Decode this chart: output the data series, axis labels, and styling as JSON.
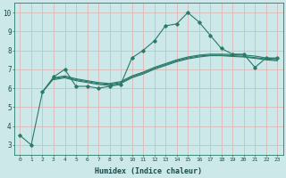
{
  "bg_color": "#cce8e8",
  "grid_color": "#ddb8b8",
  "line_color": "#2a7a6a",
  "xlabel": "Humidex (Indice chaleur)",
  "xlim": [
    -0.5,
    23.5
  ],
  "ylim": [
    2.5,
    10.5
  ],
  "yticks": [
    3,
    4,
    5,
    6,
    7,
    8,
    9,
    10
  ],
  "xticks": [
    0,
    1,
    2,
    3,
    4,
    5,
    6,
    7,
    8,
    9,
    10,
    11,
    12,
    13,
    14,
    15,
    16,
    17,
    18,
    19,
    20,
    21,
    22,
    23
  ],
  "main_x": [
    0,
    1,
    2,
    3,
    4,
    5,
    6,
    7,
    8,
    9,
    10,
    11,
    12,
    13,
    14,
    15,
    16,
    17,
    18,
    19,
    20,
    21,
    22,
    23
  ],
  "main_y": [
    3.5,
    3.0,
    5.8,
    6.6,
    7.0,
    6.1,
    6.1,
    6.0,
    6.1,
    6.2,
    7.6,
    8.0,
    8.5,
    9.3,
    9.4,
    10.0,
    9.5,
    8.8,
    8.1,
    7.8,
    7.8,
    7.1,
    7.6,
    7.6
  ],
  "avg1_x": [
    2,
    3,
    4,
    5,
    6,
    7,
    8,
    9,
    10,
    11,
    12,
    13,
    14,
    15,
    16,
    17,
    18,
    19,
    20,
    21,
    22,
    23
  ],
  "avg1_y": [
    5.8,
    6.55,
    6.65,
    6.5,
    6.4,
    6.3,
    6.25,
    6.35,
    6.65,
    6.85,
    7.1,
    7.3,
    7.5,
    7.65,
    7.75,
    7.8,
    7.8,
    7.78,
    7.75,
    7.7,
    7.6,
    7.55
  ],
  "avg2_x": [
    2,
    3,
    4,
    5,
    6,
    7,
    8,
    9,
    10,
    11,
    12,
    13,
    14,
    15,
    16,
    17,
    18,
    19,
    20,
    21,
    22,
    23
  ],
  "avg2_y": [
    5.8,
    6.5,
    6.6,
    6.45,
    6.35,
    6.25,
    6.2,
    6.3,
    6.6,
    6.8,
    7.05,
    7.25,
    7.45,
    7.6,
    7.7,
    7.75,
    7.75,
    7.72,
    7.68,
    7.62,
    7.55,
    7.5
  ],
  "avg3_x": [
    3,
    4,
    5,
    6,
    7,
    8,
    9,
    10,
    11,
    12,
    13,
    14,
    15,
    16,
    17,
    18,
    19,
    20,
    21,
    22,
    23
  ],
  "avg3_y": [
    6.45,
    6.55,
    6.4,
    6.3,
    6.2,
    6.15,
    6.25,
    6.55,
    6.75,
    7.0,
    7.2,
    7.4,
    7.55,
    7.65,
    7.72,
    7.72,
    7.68,
    7.65,
    7.58,
    7.5,
    7.45
  ]
}
